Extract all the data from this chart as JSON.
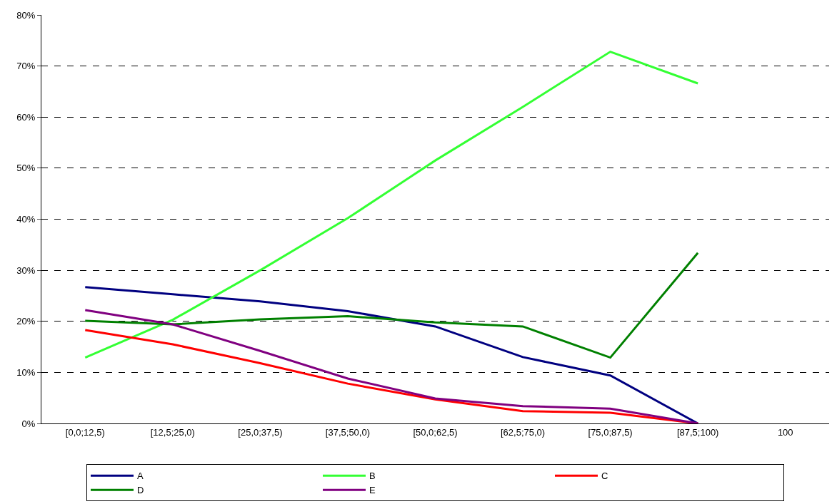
{
  "chart_data": {
    "type": "line",
    "categories": [
      "[0,0;12,5)",
      "[12,5;25,0)",
      "[25,0;37,5)",
      "[37,5;50,0)",
      "[50,0;62,5)",
      "[62,5;75,0)",
      "[75,0;87,5)",
      "[87,5;100)",
      "100"
    ],
    "series": [
      {
        "name": "A",
        "color": "#000080",
        "values": [
          26.7,
          25.3,
          23.9,
          22.0,
          19.0,
          13.0,
          9.4,
          0,
          null
        ]
      },
      {
        "name": "B",
        "color": "#33ff33",
        "values": [
          12.9,
          20.3,
          30.0,
          40.2,
          51.5,
          62.0,
          72.8,
          66.6,
          null
        ]
      },
      {
        "name": "C",
        "color": "#ff0000",
        "values": [
          18.3,
          15.5,
          11.8,
          7.8,
          4.7,
          2.4,
          2.1,
          0,
          null
        ]
      },
      {
        "name": "D",
        "color": "#008000",
        "values": [
          20.1,
          19.4,
          20.4,
          21.0,
          19.8,
          19.0,
          12.9,
          33.4,
          null
        ]
      },
      {
        "name": "E",
        "color": "#800080",
        "values": [
          22.2,
          19.4,
          14.2,
          8.8,
          4.9,
          3.4,
          2.9,
          0,
          null
        ]
      }
    ],
    "ylim": [
      0,
      80
    ],
    "yticks": [
      {
        "value": 0,
        "label": "0%"
      },
      {
        "value": 10,
        "label": "10%"
      },
      {
        "value": 20,
        "label": "20%"
      },
      {
        "value": 30,
        "label": "30%"
      },
      {
        "value": 40,
        "label": "40%"
      },
      {
        "value": 50,
        "label": "50%"
      },
      {
        "value": 60,
        "label": "60%"
      },
      {
        "value": 70,
        "label": "70%"
      },
      {
        "value": 80,
        "label": "80%"
      }
    ],
    "grid": "y",
    "legend": "bottom",
    "marker": "none",
    "line_style": "solid"
  }
}
